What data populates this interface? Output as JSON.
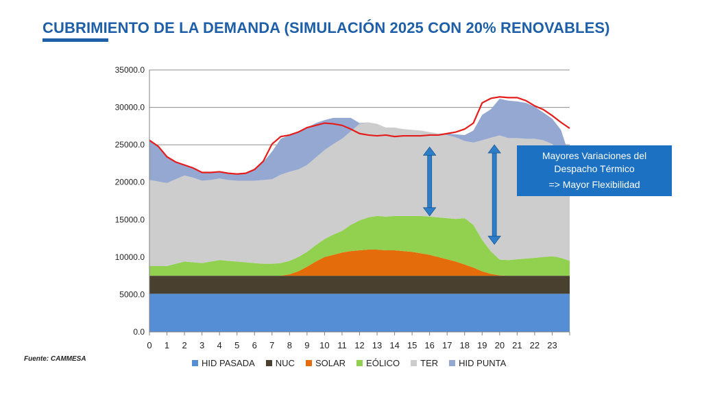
{
  "title": "CUBRIMIENTO DE LA DEMANDA  (SIMULACIÓN 2025 CON 20% RENOVABLES)",
  "source": "Fuente: CAMMESA",
  "callout": {
    "line1": "Mayores Variaciones del",
    "line2": "Despacho Térmico",
    "line3": "=> Mayor Flexibilidad"
  },
  "colors": {
    "hid_pasada": "#558ED5",
    "nuc": "#4A4030",
    "solar": "#E46C0A",
    "eolico": "#92D050",
    "ter": "#CDCDCD",
    "hid_punta": "#95A8D2",
    "demand_line": "#E31C1C",
    "arrow": "#2E7DC7",
    "title": "#1F5FA8",
    "callout_bg": "#1C71C2"
  },
  "chart_data": {
    "type": "area",
    "stacked": true,
    "x_unit": "hour",
    "xlim": [
      0,
      24
    ],
    "ylim": [
      0,
      35000
    ],
    "yticks": [
      "0.0",
      "5000.0",
      "10000.0",
      "15000.0",
      "20000.0",
      "25000.0",
      "30000.0",
      "35000.0"
    ],
    "xticks": [
      "0",
      "1",
      "2",
      "3",
      "4",
      "5",
      "6",
      "7",
      "8",
      "9",
      "10",
      "11",
      "12",
      "13",
      "14",
      "15",
      "16",
      "17",
      "18",
      "19",
      "20",
      "21",
      "22",
      "23"
    ],
    "grid": true,
    "legend_position": "bottom",
    "x": [
      0,
      0.5,
      1,
      1.5,
      2,
      2.5,
      3,
      3.5,
      4,
      4.5,
      5,
      5.5,
      6,
      6.5,
      7,
      7.5,
      8,
      8.5,
      9,
      9.5,
      10,
      10.5,
      11,
      11.5,
      12,
      12.5,
      13,
      13.5,
      14,
      14.5,
      15,
      15.5,
      16,
      16.5,
      17,
      17.5,
      18,
      18.5,
      19,
      19.5,
      20,
      20.5,
      21,
      21.5,
      22,
      22.5,
      23,
      23.5,
      24
    ],
    "series": [
      {
        "name": "HID PASADA",
        "color": "#558ED5",
        "values": [
          5100,
          5100,
          5100,
          5100,
          5100,
          5100,
          5100,
          5100,
          5100,
          5100,
          5100,
          5100,
          5100,
          5100,
          5100,
          5100,
          5100,
          5100,
          5100,
          5100,
          5100,
          5100,
          5100,
          5100,
          5100,
          5100,
          5100,
          5100,
          5100,
          5100,
          5100,
          5100,
          5100,
          5100,
          5100,
          5100,
          5100,
          5100,
          5100,
          5100,
          5100,
          5100,
          5100,
          5100,
          5100,
          5100,
          5100,
          5100,
          5100
        ]
      },
      {
        "name": "NUC",
        "color": "#4A4030",
        "values": [
          2400,
          2400,
          2400,
          2400,
          2400,
          2400,
          2400,
          2400,
          2400,
          2400,
          2400,
          2400,
          2400,
          2400,
          2400,
          2400,
          2400,
          2400,
          2400,
          2400,
          2400,
          2400,
          2400,
          2400,
          2400,
          2400,
          2400,
          2400,
          2400,
          2400,
          2400,
          2400,
          2400,
          2400,
          2400,
          2400,
          2400,
          2400,
          2400,
          2400,
          2400,
          2400,
          2400,
          2400,
          2400,
          2400,
          2400,
          2400,
          2400
        ]
      },
      {
        "name": "SOLAR",
        "color": "#E46C0A",
        "values": [
          0,
          0,
          0,
          0,
          0,
          0,
          0,
          0,
          0,
          0,
          0,
          0,
          0,
          0,
          0,
          0,
          200,
          600,
          1200,
          1900,
          2500,
          2800,
          3100,
          3300,
          3400,
          3500,
          3500,
          3400,
          3400,
          3300,
          3200,
          3000,
          2800,
          2500,
          2200,
          1900,
          1500,
          1100,
          600,
          250,
          50,
          0,
          0,
          0,
          0,
          0,
          0,
          0,
          0
        ]
      },
      {
        "name": "EÓLICO",
        "color": "#92D050",
        "values": [
          1300,
          1300,
          1300,
          1600,
          1900,
          1800,
          1700,
          1900,
          2100,
          2000,
          1900,
          1800,
          1700,
          1600,
          1600,
          1700,
          1800,
          1900,
          2000,
          2200,
          2400,
          2700,
          2900,
          3500,
          4000,
          4300,
          4500,
          4500,
          4600,
          4700,
          4800,
          5000,
          5100,
          5300,
          5500,
          5700,
          6200,
          5700,
          4200,
          3000,
          2100,
          2100,
          2200,
          2300,
          2400,
          2500,
          2600,
          2400,
          2000
        ]
      },
      {
        "name": "TER",
        "color": "#CDCDCD",
        "values": [
          11500,
          11300,
          11100,
          11300,
          11500,
          11300,
          11000,
          10900,
          10900,
          10800,
          10800,
          10900,
          11000,
          11200,
          11300,
          11800,
          11900,
          11700,
          11600,
          11700,
          11900,
          12100,
          12300,
          12500,
          12900,
          12700,
          12300,
          11900,
          11800,
          11600,
          11500,
          11400,
          11300,
          11200,
          11100,
          10900,
          10300,
          11000,
          13300,
          15200,
          16600,
          16300,
          16200,
          16000,
          15900,
          15600,
          15000,
          14100,
          13700
        ]
      },
      {
        "name": "HID PUNTA",
        "color": "#95A8D2",
        "values": [
          5300,
          4700,
          3600,
          2300,
          1400,
          1300,
          1100,
          1000,
          900,
          800,
          800,
          1000,
          1500,
          2400,
          3700,
          4800,
          4900,
          5000,
          5000,
          4600,
          4000,
          3500,
          2800,
          1800,
          100,
          0,
          0,
          0,
          0,
          0,
          0,
          0,
          0,
          0,
          200,
          400,
          800,
          1600,
          3400,
          3800,
          4900,
          5000,
          4900,
          4800,
          4300,
          3700,
          3400,
          3000,
          200
        ]
      }
    ],
    "total_demand": {
      "color": "#E31C1C",
      "values": [
        25600,
        24800,
        23400,
        22700,
        22300,
        21900,
        21300,
        21300,
        21400,
        21200,
        21100,
        21200,
        21700,
        22800,
        25100,
        26100,
        26300,
        26700,
        27300,
        27600,
        27900,
        27800,
        27600,
        27100,
        26500,
        26300,
        26200,
        26300,
        26100,
        26200,
        26200,
        26200,
        26300,
        26300,
        26500,
        26700,
        27100,
        27900,
        30600,
        31200,
        31400,
        31300,
        31300,
        30900,
        30200,
        29700,
        28900,
        28000,
        27200
      ]
    },
    "arrows": [
      {
        "x": 16,
        "y_from": 15500,
        "y_to": 24700
      },
      {
        "x": 19.7,
        "y_from": 11700,
        "y_to": 25000
      }
    ]
  }
}
